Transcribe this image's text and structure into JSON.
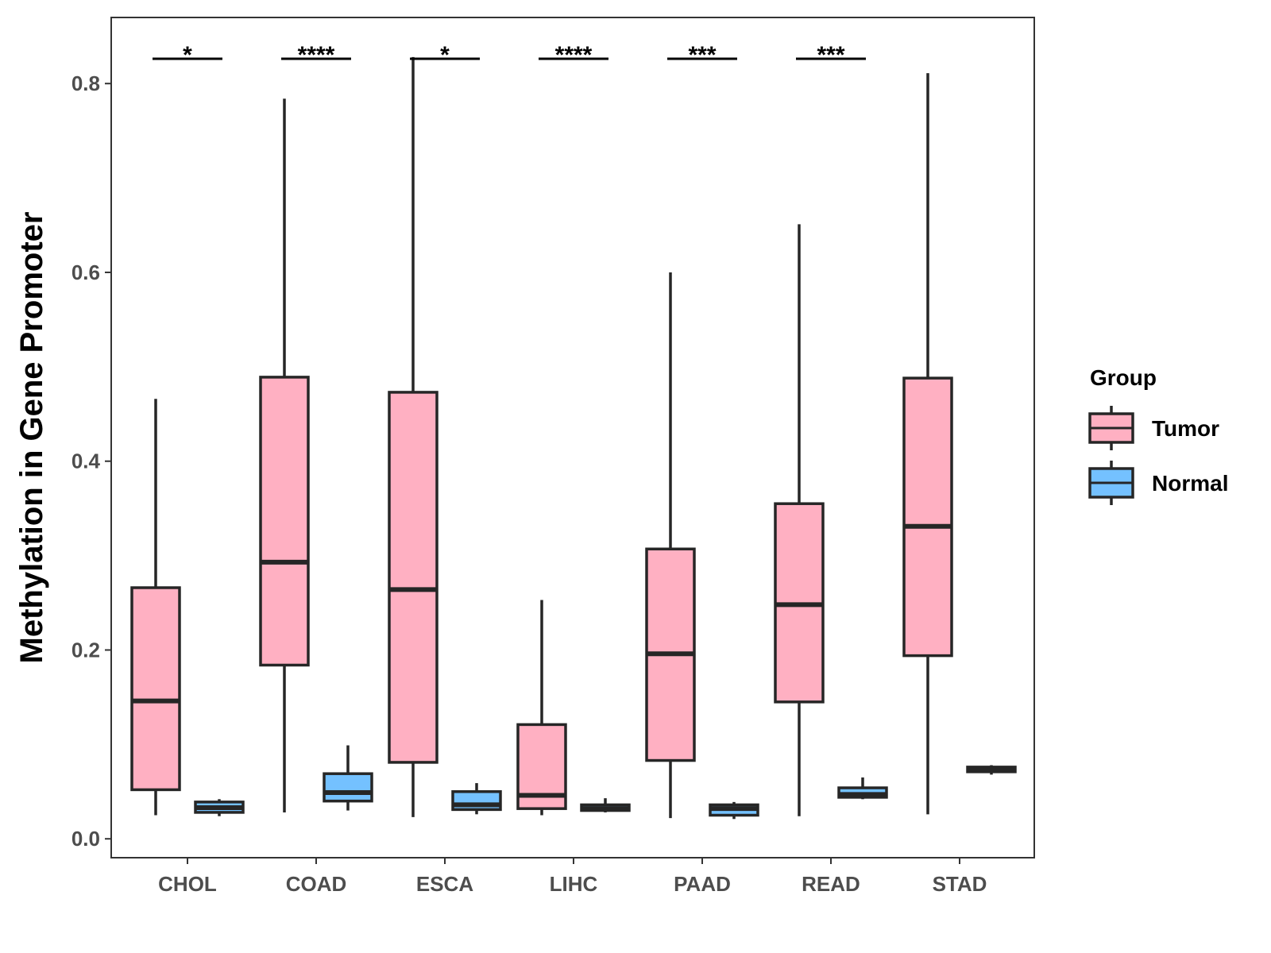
{
  "chart_data": {
    "type": "boxplot",
    "title": "",
    "xlabel": "",
    "ylabel": "Methylation in Gene Promoter",
    "ylim": [
      -0.02,
      0.87
    ],
    "yticks": [
      0.0,
      0.2,
      0.4,
      0.6,
      0.8
    ],
    "ytick_labels": [
      "0.0",
      "0.2",
      "0.4",
      "0.6",
      "0.8"
    ],
    "categories": [
      "CHOL",
      "COAD",
      "ESCA",
      "LIHC",
      "PAAD",
      "READ",
      "STAD"
    ],
    "legend": {
      "title": "Group",
      "position": "right",
      "entries": [
        {
          "name": "Tumor",
          "color": "#FFB0C2"
        },
        {
          "name": "Normal",
          "color": "#74C1FF"
        }
      ]
    },
    "series": [
      {
        "name": "Tumor",
        "color": "#FFB0C2",
        "boxes": [
          {
            "category": "CHOL",
            "min": 0.025,
            "q1": 0.052,
            "median": 0.146,
            "q3": 0.266,
            "max": 0.466
          },
          {
            "category": "COAD",
            "min": 0.028,
            "q1": 0.184,
            "median": 0.293,
            "q3": 0.489,
            "max": 0.784
          },
          {
            "category": "ESCA",
            "min": 0.023,
            "q1": 0.081,
            "median": 0.264,
            "q3": 0.473,
            "max": 0.828
          },
          {
            "category": "LIHC",
            "min": 0.025,
            "q1": 0.032,
            "median": 0.046,
            "q3": 0.121,
            "max": 0.253
          },
          {
            "category": "PAAD",
            "min": 0.022,
            "q1": 0.083,
            "median": 0.196,
            "q3": 0.307,
            "max": 0.6
          },
          {
            "category": "READ",
            "min": 0.024,
            "q1": 0.145,
            "median": 0.248,
            "q3": 0.355,
            "max": 0.651
          },
          {
            "category": "STAD",
            "min": 0.026,
            "q1": 0.194,
            "median": 0.331,
            "q3": 0.488,
            "max": 0.811
          }
        ]
      },
      {
        "name": "Normal",
        "color": "#74C1FF",
        "boxes": [
          {
            "category": "CHOL",
            "min": 0.024,
            "q1": 0.028,
            "median": 0.033,
            "q3": 0.039,
            "max": 0.042
          },
          {
            "category": "COAD",
            "min": 0.03,
            "q1": 0.04,
            "median": 0.049,
            "q3": 0.069,
            "max": 0.099
          },
          {
            "category": "ESCA",
            "min": 0.026,
            "q1": 0.031,
            "median": 0.036,
            "q3": 0.05,
            "max": 0.059
          },
          {
            "category": "LIHC",
            "min": 0.028,
            "q1": 0.03,
            "median": 0.032,
            "q3": 0.036,
            "max": 0.043
          },
          {
            "category": "PAAD",
            "min": 0.021,
            "q1": 0.025,
            "median": 0.032,
            "q3": 0.036,
            "max": 0.039
          },
          {
            "category": "READ",
            "min": 0.042,
            "q1": 0.044,
            "median": 0.047,
            "q3": 0.054,
            "max": 0.065
          },
          {
            "category": "STAD",
            "min": 0.068,
            "q1": 0.071,
            "median": 0.073,
            "q3": 0.076,
            "max": 0.078
          }
        ]
      }
    ],
    "significance": [
      {
        "category": "CHOL",
        "label": "*"
      },
      {
        "category": "COAD",
        "label": "****"
      },
      {
        "category": "ESCA",
        "label": "*"
      },
      {
        "category": "LIHC",
        "label": "****"
      },
      {
        "category": "PAAD",
        "label": "***"
      },
      {
        "category": "READ",
        "label": "***"
      }
    ],
    "grid": false
  }
}
